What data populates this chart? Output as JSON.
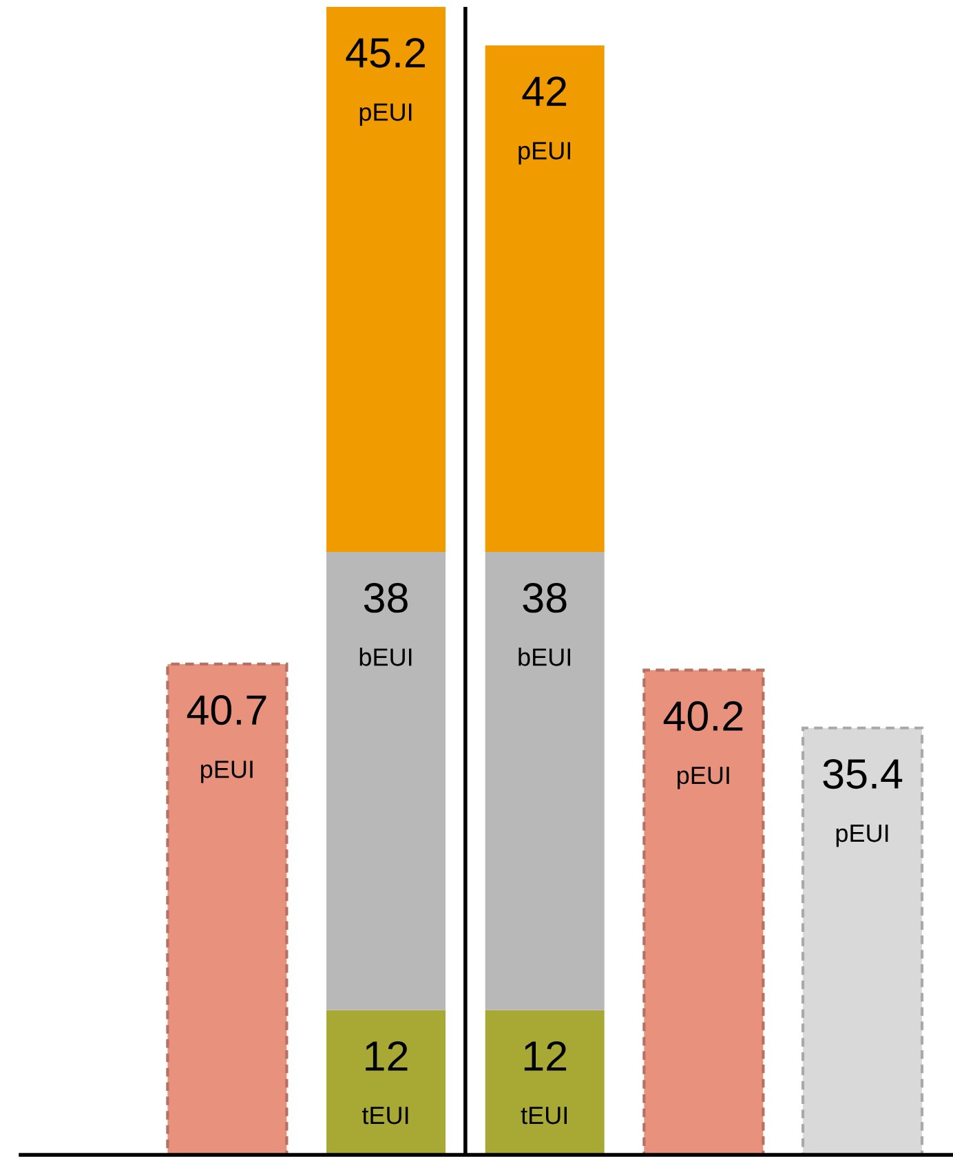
{
  "chart_data": {
    "type": "bar",
    "stacked": true,
    "categories": [
      null,
      null,
      null,
      null,
      null
    ],
    "data_labels": true,
    "series": [
      {
        "name": "tEUI",
        "color": "#a8a935",
        "values": [
          null,
          12,
          12,
          null,
          null
        ]
      },
      {
        "name": "bEUI",
        "color": "#b8b8b8",
        "values": [
          null,
          38,
          38,
          null,
          null
        ]
      },
      {
        "name": "pEUI",
        "color": "#f09c00",
        "values": [
          null,
          45.2,
          42,
          null,
          null
        ]
      },
      {
        "name": "pEUI",
        "colors": [
          "#e8917c",
          null,
          null,
          "#e8917c",
          "#d9d9d9"
        ],
        "line_style": "dashed",
        "values": [
          40.7,
          null,
          null,
          40.2,
          35.4
        ]
      }
    ]
  }
}
